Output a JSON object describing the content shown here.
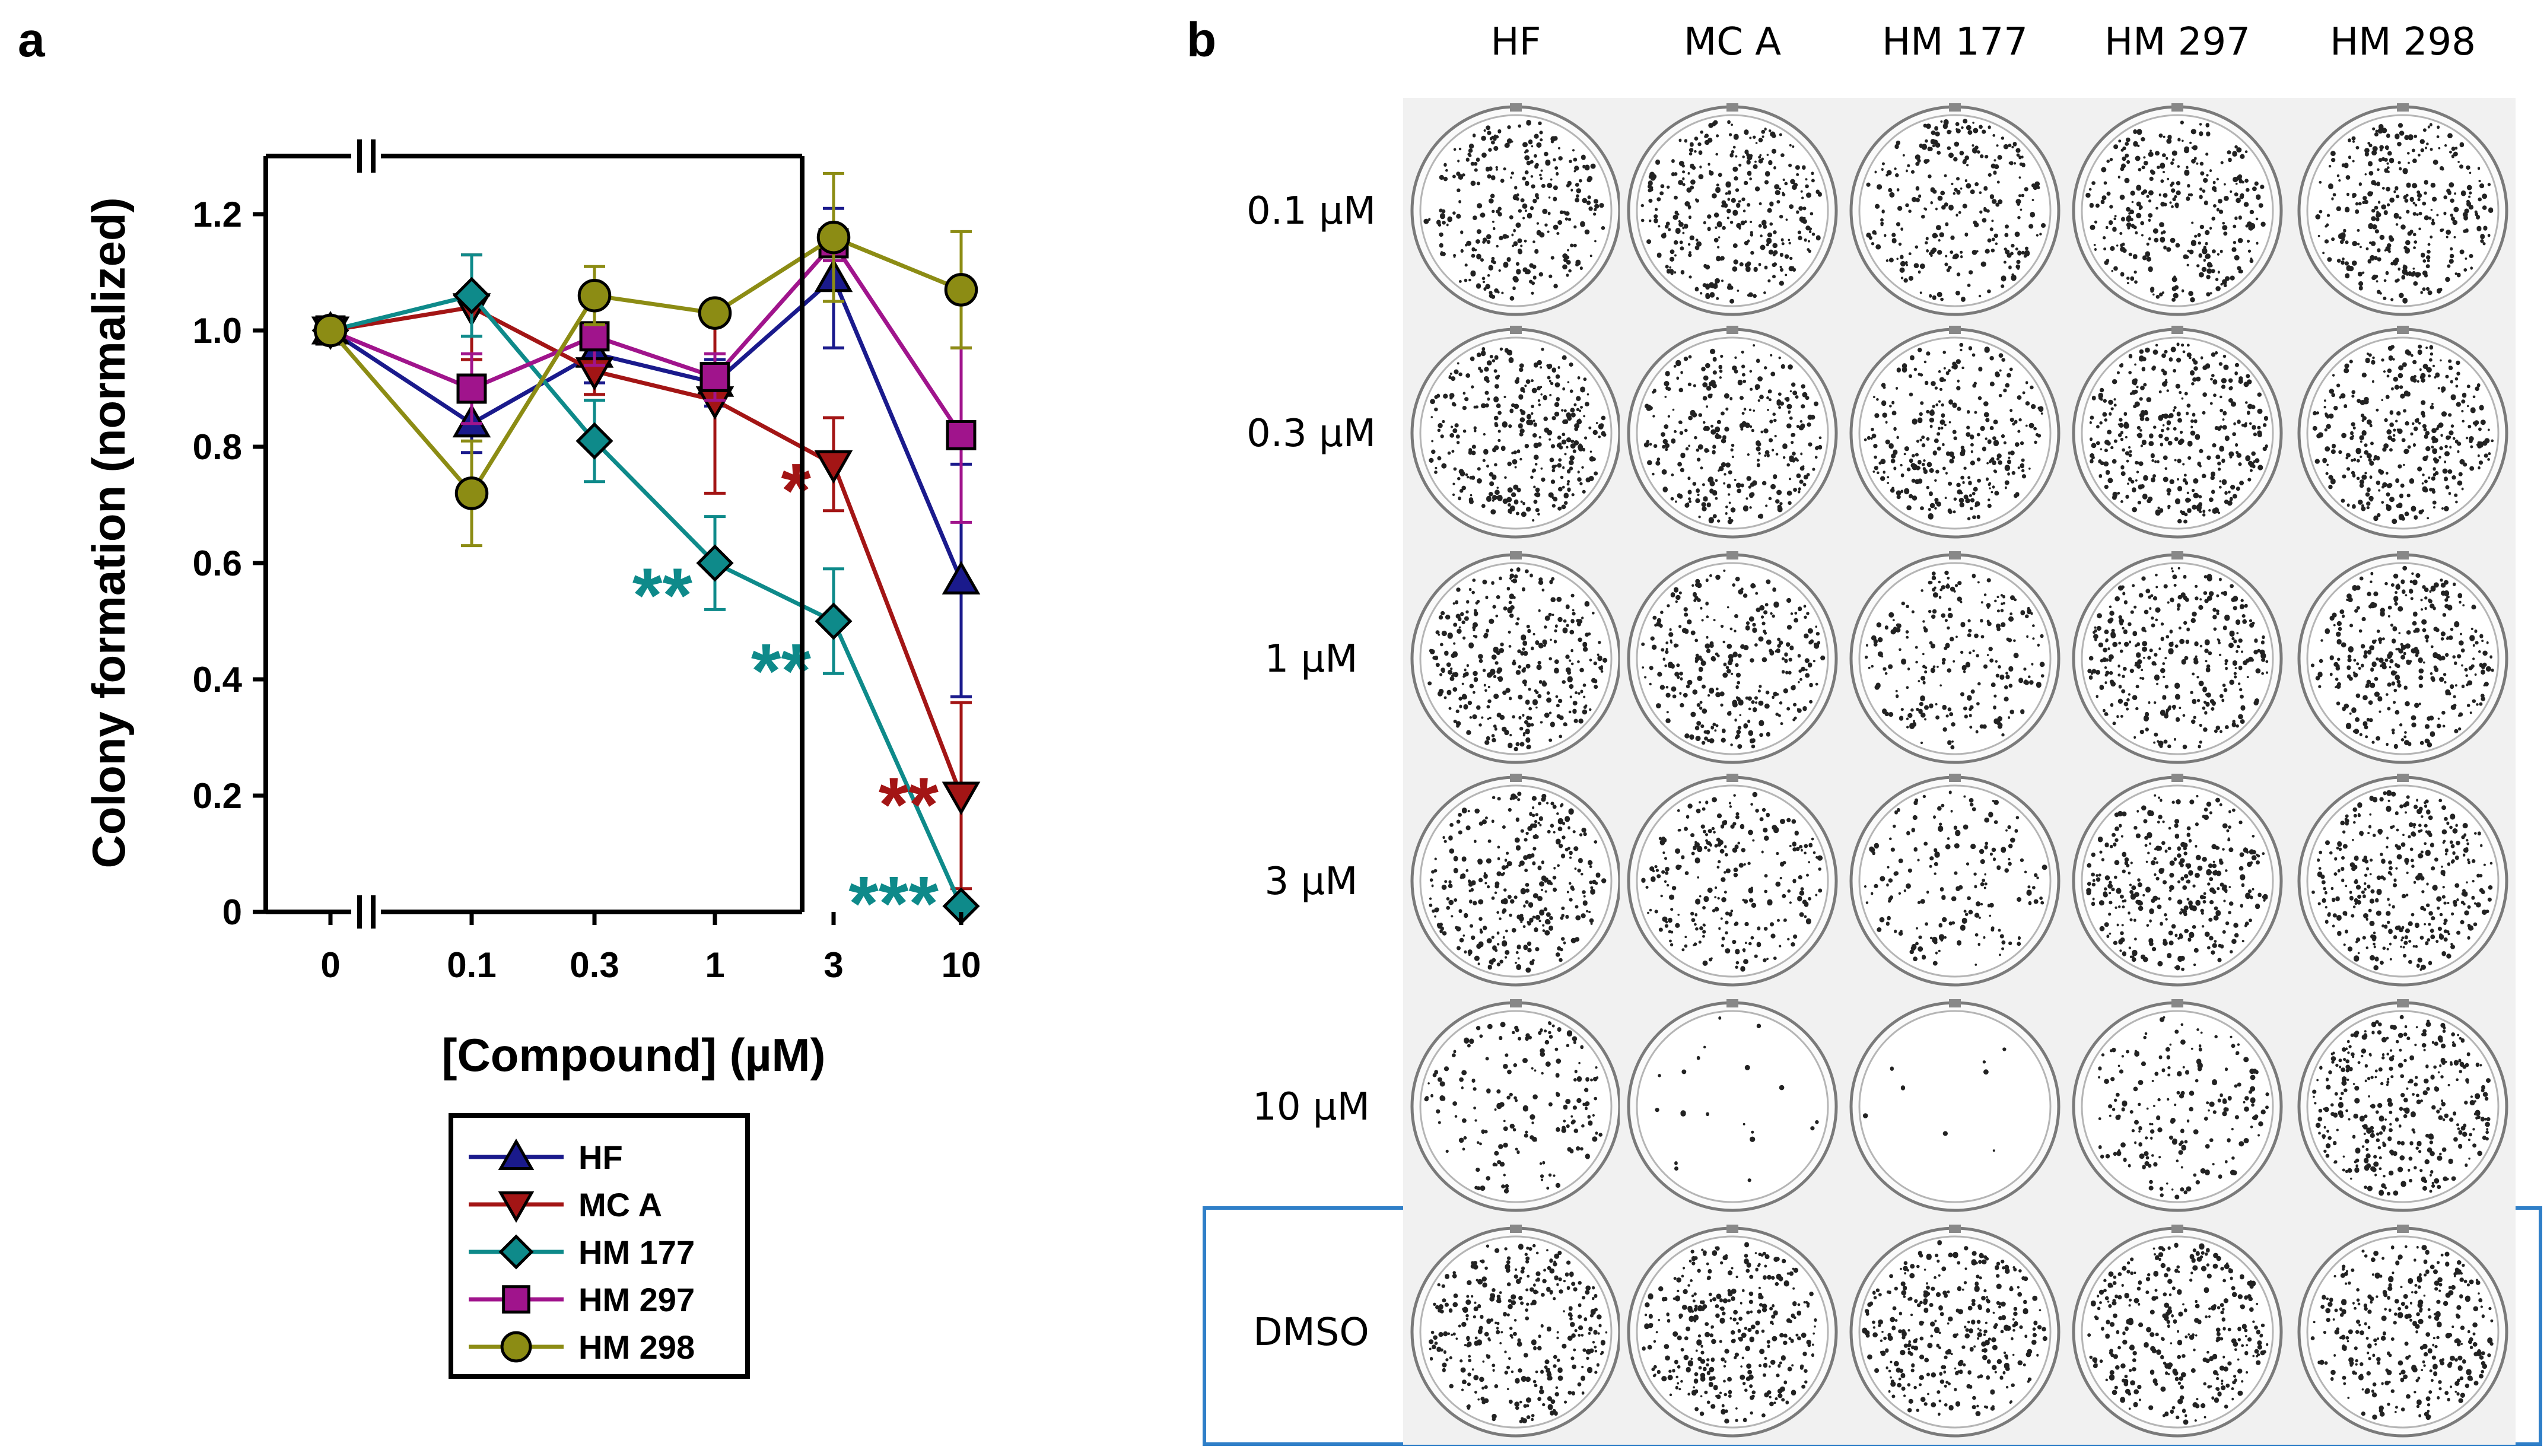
{
  "panel_a": {
    "letter": "a"
  },
  "panel_b": {
    "letter": "b",
    "columns": [
      "HF",
      "MC A",
      "HM 177",
      "HM 297",
      "HM 298"
    ],
    "rows": [
      "0.1 µM",
      "0.3 µM",
      "1 µM",
      "3 µM",
      "10 µM",
      "DMSO"
    ],
    "colony_density": [
      [
        0.75,
        0.85,
        0.7,
        0.8,
        0.85
      ],
      [
        0.85,
        0.8,
        0.75,
        0.9,
        0.9
      ],
      [
        0.85,
        0.75,
        0.6,
        0.85,
        0.85
      ],
      [
        0.8,
        0.65,
        0.45,
        0.85,
        0.9
      ],
      [
        0.45,
        0.05,
        0.02,
        0.5,
        0.9
      ],
      [
        0.85,
        0.85,
        0.85,
        0.85,
        0.85
      ]
    ]
  },
  "chart_data": {
    "type": "line",
    "title": "",
    "xlabel": "[Compound] (µM)",
    "ylabel": "Colony formation (normalized)",
    "categories": [
      "0",
      "0.1",
      "0.3",
      "1",
      "3",
      "10"
    ],
    "ylim": [
      0,
      1.3
    ],
    "yticks": [
      0,
      0.2,
      0.4,
      0.6,
      0.8,
      1.0,
      1.2
    ],
    "ytick_labels": [
      "0",
      "0.2",
      "0.4",
      "0.6",
      "0.8",
      "1.0",
      "1.2"
    ],
    "axis_break": "between 0 and 0.1",
    "legend_position": "below",
    "series": [
      {
        "name": "HF",
        "marker": "triangle-up",
        "color": "#1a1a8c",
        "values": [
          1.0,
          0.84,
          0.96,
          0.91,
          1.09,
          0.57
        ],
        "errors": [
          0,
          0.05,
          0.05,
          0.04,
          0.12,
          0.2
        ]
      },
      {
        "name": "MC A",
        "marker": "triangle-down",
        "color": "#a31515",
        "values": [
          1.0,
          1.04,
          0.93,
          0.88,
          0.77,
          0.2
        ],
        "errors": [
          0,
          0.09,
          0.04,
          0.16,
          0.08,
          0.16
        ]
      },
      {
        "name": "HM 177",
        "marker": "diamond",
        "color": "#0e8a8a",
        "values": [
          1.0,
          1.06,
          0.81,
          0.6,
          0.5,
          0.01
        ],
        "errors": [
          0,
          0.07,
          0.07,
          0.08,
          0.09,
          0
        ]
      },
      {
        "name": "HM 297",
        "marker": "square",
        "color": "#a0148c",
        "values": [
          1.0,
          0.9,
          0.99,
          0.92,
          1.15,
          0.82
        ],
        "errors": [
          0,
          0.06,
          0.05,
          0.04,
          0.03,
          0.15
        ]
      },
      {
        "name": "HM 298",
        "marker": "circle",
        "color": "#8c8c14",
        "values": [
          1.0,
          0.72,
          1.06,
          1.03,
          1.16,
          1.07
        ],
        "errors": [
          0,
          0.09,
          0.05,
          0,
          0.11,
          0.1
        ]
      }
    ],
    "annotations": [
      {
        "text": "*",
        "series": "MC A",
        "category": "3",
        "y": 0.73
      },
      {
        "text": "**",
        "series": "HM 177",
        "category": "1",
        "y": 0.55
      },
      {
        "text": "**",
        "series": "HM 177",
        "category": "3",
        "y": 0.42
      },
      {
        "text": "**",
        "series": "MC A",
        "category": "10",
        "y": 0.19
      },
      {
        "text": "***",
        "series": "HM 177",
        "category": "10",
        "y": 0.02
      }
    ]
  }
}
